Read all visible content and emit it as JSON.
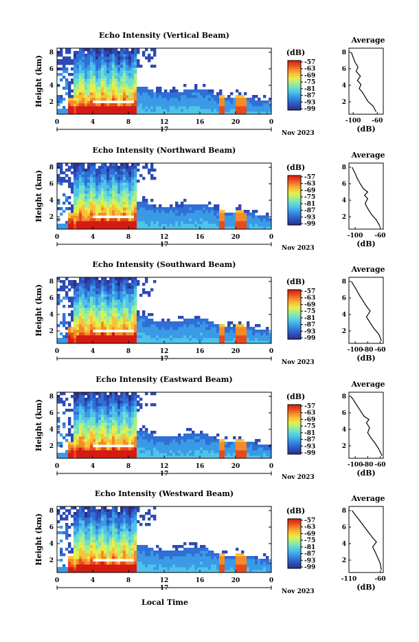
{
  "colors": {
    "scale": [
      "#2b2f86",
      "#2c4bb5",
      "#2f6fd6",
      "#3a9ae6",
      "#4fc3e8",
      "#6fe0c8",
      "#a8ee8a",
      "#e6ee4a",
      "#f9c238",
      "#f58a2a",
      "#e84a1e",
      "#d41a12"
    ],
    "sky": "#ffffff"
  },
  "x_axis": {
    "tick_labels": [
      "0",
      "4",
      "8",
      "12",
      "16",
      "20",
      "0"
    ],
    "date_day": "17",
    "date_month": "Nov 2023",
    "label": "Local Time"
  },
  "y_axis": {
    "label": "Height (km)",
    "tick_labels": [
      "2",
      "4",
      "6",
      "8"
    ]
  },
  "colorbar": {
    "unit": "(dB)",
    "tick_labels": [
      "-57",
      "-63",
      "-69",
      "-75",
      "-81",
      "-87",
      "-93",
      "-99"
    ]
  },
  "profile": {
    "title": "Average",
    "xlabel": "(dB)",
    "y_tick_labels": [
      "2",
      "4",
      "6",
      "8"
    ]
  },
  "chart_data": [
    {
      "type": "heatmap",
      "title": "Echo Intensity (Vertical Beam)",
      "xlabel": "",
      "ylabel": "Height (km)",
      "xlim": [
        0,
        24
      ],
      "ylim": [
        0.5,
        8.5
      ],
      "colorbar": {
        "label": "(dB)",
        "range": [
          -99,
          -57
        ]
      },
      "profile": {
        "type": "line",
        "title": "Average",
        "xlabel": "(dB)",
        "xlim": [
          -107,
          -50
        ],
        "x_tick_labels": [
          "-100",
          "-60"
        ],
        "points": [
          [
            -62,
            0.8
          ],
          [
            -67,
            1.5
          ],
          [
            -75,
            2.0
          ],
          [
            -80,
            2.6
          ],
          [
            -85,
            3.2
          ],
          [
            -90,
            3.6
          ],
          [
            -87,
            4.1
          ],
          [
            -93,
            4.6
          ],
          [
            -88,
            5.1
          ],
          [
            -95,
            5.7
          ],
          [
            -92,
            6.2
          ],
          [
            -97,
            6.8
          ],
          [
            -100,
            7.4
          ],
          [
            -103,
            8.0
          ]
        ]
      }
    },
    {
      "type": "heatmap",
      "title": "Echo Intensity (Northward Beam)",
      "xlabel": "",
      "ylabel": "Height (km)",
      "xlim": [
        0,
        24
      ],
      "ylim": [
        0.5,
        8.5
      ],
      "colorbar": {
        "label": "(dB)",
        "range": [
          -99,
          -57
        ]
      },
      "profile": {
        "type": "line",
        "title": "Average",
        "xlabel": "(dB)",
        "xlim": [
          -110,
          -55
        ],
        "x_tick_labels": [
          "-100",
          "-60"
        ],
        "points": [
          [
            -60,
            0.8
          ],
          [
            -66,
            1.6
          ],
          [
            -74,
            2.3
          ],
          [
            -80,
            3.0
          ],
          [
            -84,
            3.6
          ],
          [
            -80,
            4.2
          ],
          [
            -85,
            4.6
          ],
          [
            -80,
            5.0
          ],
          [
            -87,
            5.4
          ],
          [
            -92,
            6.0
          ],
          [
            -97,
            6.7
          ],
          [
            -101,
            7.4
          ],
          [
            -105,
            8.0
          ]
        ]
      }
    },
    {
      "type": "heatmap",
      "title": "Echo Intensity (Southward Beam)",
      "xlabel": "",
      "ylabel": "Height (km)",
      "xlim": [
        0,
        24
      ],
      "ylim": [
        0.5,
        8.5
      ],
      "colorbar": {
        "label": "(dB)",
        "range": [
          -99,
          -57
        ]
      },
      "profile": {
        "type": "line",
        "title": "Average",
        "xlabel": "(dB)",
        "xlim": [
          -110,
          -55
        ],
        "x_tick_labels": [
          "-100",
          "-80",
          "-60"
        ],
        "points": [
          [
            -58,
            0.8
          ],
          [
            -62,
            1.6
          ],
          [
            -70,
            2.3
          ],
          [
            -76,
            3.0
          ],
          [
            -82,
            3.7
          ],
          [
            -76,
            4.4
          ],
          [
            -82,
            5.0
          ],
          [
            -87,
            5.6
          ],
          [
            -93,
            6.3
          ],
          [
            -98,
            7.0
          ],
          [
            -103,
            7.6
          ],
          [
            -106,
            8.0
          ]
        ]
      }
    },
    {
      "type": "heatmap",
      "title": "Echo Intensity (Eastward Beam)",
      "xlabel": "",
      "ylabel": "Height (km)",
      "xlim": [
        0,
        24
      ],
      "ylim": [
        0.5,
        8.5
      ],
      "colorbar": {
        "label": "(dB)",
        "range": [
          -99,
          -57
        ]
      },
      "profile": {
        "type": "line",
        "title": "Average",
        "xlabel": "(dB)",
        "xlim": [
          -110,
          -55
        ],
        "x_tick_labels": [
          "-100",
          "-80",
          "-60"
        ],
        "points": [
          [
            -57,
            0.8
          ],
          [
            -62,
            1.6
          ],
          [
            -68,
            2.3
          ],
          [
            -75,
            3.0
          ],
          [
            -80,
            3.6
          ],
          [
            -77,
            4.2
          ],
          [
            -82,
            4.8
          ],
          [
            -78,
            5.2
          ],
          [
            -86,
            5.6
          ],
          [
            -92,
            6.3
          ],
          [
            -98,
            7.0
          ],
          [
            -104,
            7.7
          ],
          [
            -107,
            8.0
          ]
        ]
      }
    },
    {
      "type": "heatmap",
      "title": "Echo Intensity (Westward Beam)",
      "xlabel": "Local Time",
      "ylabel": "Height (km)",
      "xlim": [
        0,
        24
      ],
      "ylim": [
        0.5,
        8.5
      ],
      "colorbar": {
        "label": "(dB)",
        "range": [
          -99,
          -57
        ]
      },
      "profile": {
        "type": "line",
        "title": "Average",
        "xlabel": "(dB)",
        "xlim": [
          -110,
          -55
        ],
        "x_tick_labels": [
          "-110",
          "-60"
        ],
        "points": [
          [
            -58,
            0.8
          ],
          [
            -60,
            1.6
          ],
          [
            -64,
            2.3
          ],
          [
            -68,
            3.0
          ],
          [
            -72,
            3.6
          ],
          [
            -66,
            4.2
          ],
          [
            -72,
            4.7
          ],
          [
            -78,
            5.3
          ],
          [
            -85,
            6.0
          ],
          [
            -92,
            6.7
          ],
          [
            -99,
            7.4
          ],
          [
            -105,
            8.0
          ]
        ]
      }
    }
  ]
}
